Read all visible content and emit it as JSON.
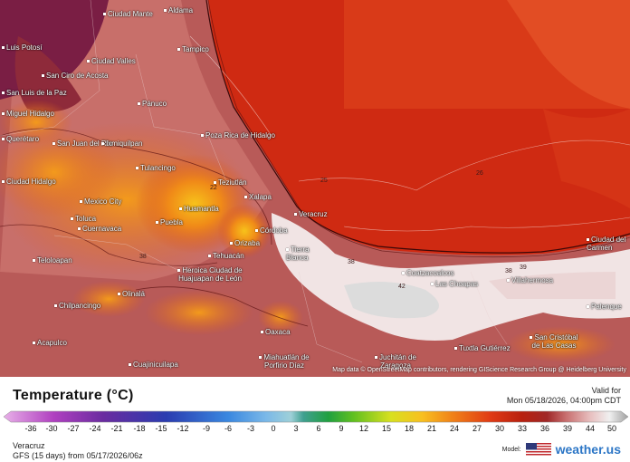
{
  "map": {
    "cities": [
      {
        "name": "Aldama"
      },
      {
        "name": "Ciudad Mante"
      },
      {
        "name": "Luis Potosí"
      },
      {
        "name": "Ciudad Valles"
      },
      {
        "name": "Tampico"
      },
      {
        "name": "San Ciro de Acosta"
      },
      {
        "name": "San Luis de la Paz"
      },
      {
        "name": "Pánuco"
      },
      {
        "name": "Miguel Hidalgo"
      },
      {
        "name": "Querétaro"
      },
      {
        "name": "San Juan del Río"
      },
      {
        "name": "Ixmiquilpan"
      },
      {
        "name": "Poza Rica de Hidalgo"
      },
      {
        "name": "Tulancingo"
      },
      {
        "name": "Ciudad Hidalgo"
      },
      {
        "name": "Teziutlán"
      },
      {
        "name": "Xalapa"
      },
      {
        "name": "Mexico City"
      },
      {
        "name": "Toluca"
      },
      {
        "name": "Huamantla"
      },
      {
        "name": "Puebla"
      },
      {
        "name": "Veracruz"
      },
      {
        "name": "Cuernavaca"
      },
      {
        "name": "Córdoba"
      },
      {
        "name": "Orizaba"
      },
      {
        "name": "Tehuacán"
      },
      {
        "name": "Tierra Blanca"
      },
      {
        "name": "Teloloapan"
      },
      {
        "name": "Heroica Ciudad de Huajuapan de León"
      },
      {
        "name": "Coatzacoalcos"
      },
      {
        "name": "Las Choapas"
      },
      {
        "name": "Villahermosa"
      },
      {
        "name": "Ciudad del Carmen"
      },
      {
        "name": "Olinalá"
      },
      {
        "name": "Chilpancingo"
      },
      {
        "name": "Palenque"
      },
      {
        "name": "Acapulco"
      },
      {
        "name": "Oaxaca"
      },
      {
        "name": "San Cristóbal de Las Casas"
      },
      {
        "name": "Tuxtla Gutiérrez"
      },
      {
        "name": "Cuajinicuilapa"
      },
      {
        "name": "Miahuatlán de Porfirio Díaz"
      },
      {
        "name": "Juchitán de Zaragoza"
      }
    ],
    "isotherm_labels": [
      "25",
      "26",
      "22",
      "38",
      "38",
      "42",
      "38",
      "39"
    ],
    "attribution": "Map data © OpenStreetMap contributors, rendering GIScience Research Group @ Heidelberg University"
  },
  "legend": {
    "title": "Temperature (°C)",
    "valid_label": "Valid for",
    "valid_time": "Mon 05/18/2026, 04:00pm CDT",
    "ticks": [
      "-36",
      "-30",
      "-27",
      "-24",
      "-21",
      "-18",
      "-15",
      "-12",
      "-9",
      "-6",
      "-3",
      "0",
      "3",
      "6",
      "9",
      "12",
      "15",
      "18",
      "21",
      "24",
      "27",
      "30",
      "33",
      "36",
      "39",
      "44",
      "50"
    ],
    "location": "Veracruz",
    "model_run": "GFS (15 days) from 05/17/2026/06z",
    "model_label": "Model:",
    "brand": "weather.us"
  }
}
